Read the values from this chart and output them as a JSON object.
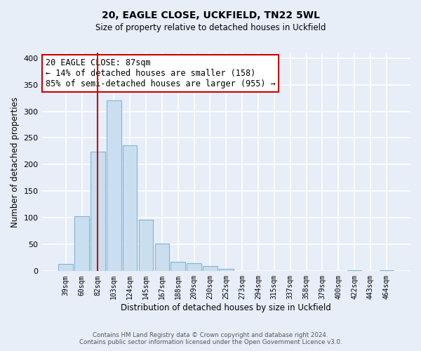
{
  "title": "20, EAGLE CLOSE, UCKFIELD, TN22 5WL",
  "subtitle": "Size of property relative to detached houses in Uckfield",
  "xlabel": "Distribution of detached houses by size in Uckfield",
  "ylabel": "Number of detached properties",
  "bar_labels": [
    "39sqm",
    "60sqm",
    "82sqm",
    "103sqm",
    "124sqm",
    "145sqm",
    "167sqm",
    "188sqm",
    "209sqm",
    "230sqm",
    "252sqm",
    "273sqm",
    "294sqm",
    "315sqm",
    "337sqm",
    "358sqm",
    "379sqm",
    "400sqm",
    "422sqm",
    "443sqm",
    "464sqm"
  ],
  "bar_values": [
    14,
    103,
    224,
    320,
    236,
    97,
    52,
    18,
    15,
    10,
    5,
    0,
    0,
    0,
    0,
    0,
    0,
    0,
    2,
    0,
    2
  ],
  "bar_color": "#c9dff0",
  "bar_edge_color": "#7eb5d6",
  "vline_x": 2,
  "vline_color": "#cc0000",
  "annotation_title": "20 EAGLE CLOSE: 87sqm",
  "annotation_line1": "← 14% of detached houses are smaller (158)",
  "annotation_line2": "85% of semi-detached houses are larger (955) →",
  "annotation_box_color": "#ffffff",
  "annotation_box_edgecolor": "#cc0000",
  "ylim": [
    0,
    410
  ],
  "yticks": [
    0,
    50,
    100,
    150,
    200,
    250,
    300,
    350,
    400
  ],
  "footer_line1": "Contains HM Land Registry data © Crown copyright and database right 2024.",
  "footer_line2": "Contains public sector information licensed under the Open Government Licence v3.0.",
  "bg_color": "#e8eef8",
  "plot_bg_color": "#e8eef8",
  "grid_color": "#ffffff"
}
